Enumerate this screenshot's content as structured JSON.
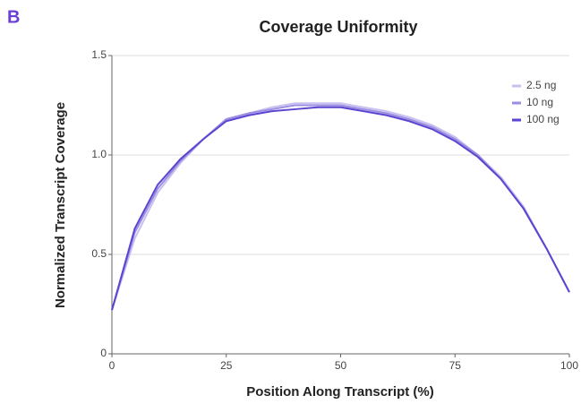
{
  "chart_data": {
    "type": "line",
    "panel_label": "B",
    "title": "Coverage Uniformity",
    "x_label": "Position Along Transcript (%)",
    "y_label": "Normalized Transcript Coverage",
    "x": [
      0,
      5,
      10,
      15,
      20,
      25,
      30,
      35,
      40,
      45,
      50,
      55,
      60,
      65,
      70,
      75,
      80,
      85,
      90,
      95,
      100
    ],
    "series": [
      {
        "name": "2.5 ng",
        "color": "#c8c1ef",
        "values": [
          0.22,
          0.58,
          0.81,
          0.96,
          1.08,
          1.18,
          1.21,
          1.24,
          1.26,
          1.26,
          1.26,
          1.24,
          1.22,
          1.19,
          1.15,
          1.09,
          1.0,
          0.89,
          0.74,
          0.53,
          0.31
        ]
      },
      {
        "name": "10 ng",
        "color": "#9a8de2",
        "values": [
          0.22,
          0.61,
          0.83,
          0.97,
          1.08,
          1.18,
          1.21,
          1.23,
          1.25,
          1.25,
          1.25,
          1.23,
          1.21,
          1.18,
          1.14,
          1.08,
          1.0,
          0.88,
          0.73,
          0.53,
          0.31
        ]
      },
      {
        "name": "100 ng",
        "color": "#5a45d0",
        "values": [
          0.22,
          0.63,
          0.85,
          0.98,
          1.08,
          1.17,
          1.2,
          1.22,
          1.23,
          1.24,
          1.24,
          1.22,
          1.2,
          1.17,
          1.13,
          1.07,
          0.99,
          0.88,
          0.73,
          0.53,
          0.31
        ]
      }
    ],
    "xlim": [
      0,
      100
    ],
    "xticks": [
      0,
      25,
      50,
      75,
      100
    ],
    "ylim": [
      0,
      1.5
    ],
    "yticks": [
      0,
      0.5,
      {
        "value": 1,
        "label": "1.0"
      },
      1.5
    ],
    "grid": true,
    "legend": "upper right"
  }
}
